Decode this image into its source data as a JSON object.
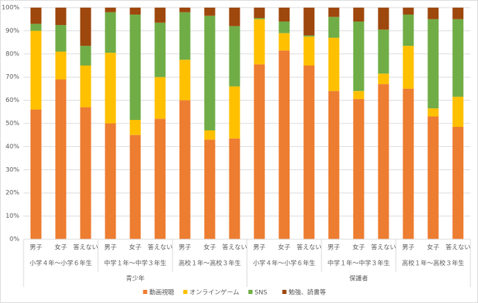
{
  "chart_data": {
    "type": "stacked-bar-100",
    "category_groups": [
      {
        "name": "青少年",
        "groups": [
          {
            "name": "小学４年～小学６年生",
            "categories": [
              "男子",
              "女子",
              "答えない"
            ]
          },
          {
            "name": "中学１年～中学３年生",
            "categories": [
              "男子",
              "女子",
              "答えない"
            ]
          },
          {
            "name": "高校１年～高校３年生",
            "categories": [
              "男子",
              "女子",
              "答えない"
            ]
          }
        ]
      },
      {
        "name": "保護者",
        "groups": [
          {
            "name": "小学４年～小学６年生",
            "categories": [
              "男子",
              "女子",
              "答えない"
            ]
          },
          {
            "name": "中学１年～中学３年生",
            "categories": [
              "男子",
              "女子",
              "答えない"
            ]
          },
          {
            "name": "高校１年～高校３年生",
            "categories": [
              "男子",
              "女子",
              "答えない"
            ]
          }
        ]
      }
    ],
    "series": [
      {
        "name": "動画視聴",
        "color": "#ED7D31",
        "values": [
          56,
          69,
          57,
          50,
          45,
          52,
          60,
          43,
          43.5,
          75.5,
          81.5,
          75,
          64,
          60.5,
          67,
          65,
          53,
          48.5
        ]
      },
      {
        "name": "オンラインゲーム",
        "color": "#FFC000",
        "values": [
          34,
          12,
          18,
          30.5,
          6.5,
          18,
          17.5,
          4,
          22.5,
          19.5,
          7.5,
          12.5,
          23,
          3.5,
          4.5,
          18.5,
          3.5,
          13
        ]
      },
      {
        "name": "SNS",
        "color": "#70AD47",
        "values": [
          3,
          11.5,
          8.5,
          17.5,
          45.5,
          23.5,
          20.5,
          49.5,
          26,
          0.5,
          5,
          0.5,
          9,
          30,
          19,
          13.5,
          38.5,
          33.5
        ]
      },
      {
        "name": "勉強、読書等",
        "color": "#9E480E",
        "values": [
          7,
          7.5,
          16.5,
          2,
          3,
          6.5,
          2,
          3.5,
          8,
          4.5,
          6,
          12,
          4,
          6,
          9.5,
          3,
          5,
          5
        ]
      }
    ],
    "ylim": [
      0,
      100
    ],
    "yticks": [
      {
        "value": 0,
        "label": "0%"
      },
      {
        "value": 10,
        "label": "10%"
      },
      {
        "value": 20,
        "label": "20%"
      },
      {
        "value": 30,
        "label": "30%"
      },
      {
        "value": 40,
        "label": "40%"
      },
      {
        "value": 50,
        "label": "50%"
      },
      {
        "value": 60,
        "label": "60%"
      },
      {
        "value": 70,
        "label": "70%"
      },
      {
        "value": 80,
        "label": "80%"
      },
      {
        "value": 90,
        "label": "90%"
      },
      {
        "value": 100,
        "label": "100%"
      }
    ],
    "grid": true,
    "legend": "bottom"
  }
}
